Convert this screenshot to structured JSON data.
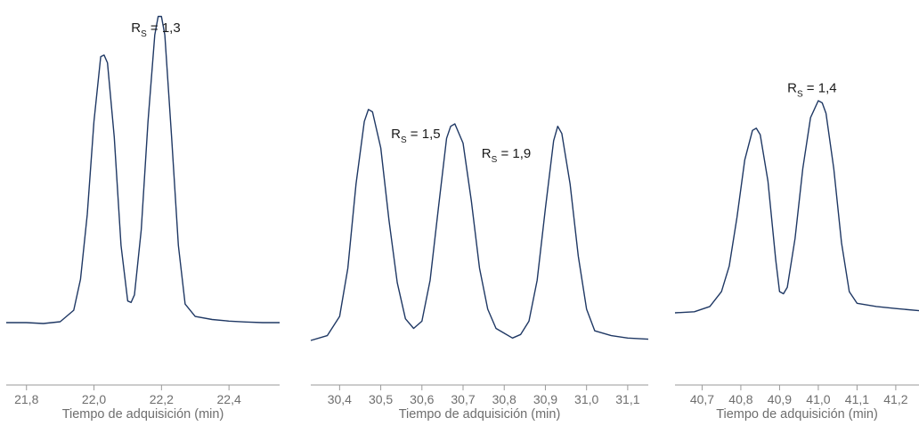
{
  "chart_data": [
    {
      "type": "line",
      "xlabel": "Tiempo de adquisición (min)",
      "xlim": [
        21.74,
        22.55
      ],
      "ylim": [
        0,
        1
      ],
      "xticks": [
        21.8,
        22.0,
        22.2,
        22.4
      ],
      "tick_labels": [
        "21,8",
        "22,0",
        "22,2",
        "22,4"
      ],
      "color": "#1f3864",
      "x": [
        21.74,
        21.8,
        21.85,
        21.9,
        21.94,
        21.96,
        21.98,
        22.0,
        22.02,
        22.03,
        22.04,
        22.06,
        22.08,
        22.1,
        22.11,
        22.12,
        22.14,
        22.16,
        22.18,
        22.19,
        22.2,
        22.21,
        22.23,
        22.25,
        22.27,
        22.3,
        22.35,
        22.4,
        22.45,
        22.5,
        22.55
      ],
      "y": [
        0.0,
        0.0,
        -0.003,
        0.003,
        0.04,
        0.14,
        0.35,
        0.65,
        0.86,
        0.865,
        0.84,
        0.6,
        0.25,
        0.07,
        0.065,
        0.09,
        0.3,
        0.65,
        0.93,
        0.99,
        0.99,
        0.93,
        0.6,
        0.25,
        0.06,
        0.02,
        0.01,
        0.005,
        0.002,
        0.0,
        0.0
      ],
      "annotations": [
        {
          "prefix": "R",
          "sub": "S",
          "value": " = 1,3",
          "x": 22.11,
          "y": 0.94
        }
      ]
    },
    {
      "type": "line",
      "xlabel": "Tiempo de adquisición (min)",
      "xlim": [
        30.33,
        31.15
      ],
      "ylim": [
        0,
        1
      ],
      "xticks": [
        30.4,
        30.5,
        30.6,
        30.7,
        30.8,
        30.9,
        31.0,
        31.1
      ],
      "tick_labels": [
        "30,4",
        "30,5",
        "30,6",
        "30,7",
        "30,8",
        "30,9",
        "31,0",
        "31,1"
      ],
      "color": "#1f3864",
      "x": [
        30.33,
        30.37,
        30.4,
        30.42,
        30.44,
        30.46,
        30.47,
        30.48,
        30.5,
        30.52,
        30.54,
        30.56,
        30.58,
        30.6,
        30.62,
        30.64,
        30.66,
        30.67,
        30.68,
        30.7,
        30.72,
        30.74,
        30.76,
        30.78,
        30.8,
        30.82,
        30.84,
        30.86,
        30.88,
        30.9,
        30.92,
        30.93,
        30.94,
        30.96,
        30.98,
        31.0,
        31.02,
        31.06,
        31.1,
        31.15
      ],
      "y": [
        0.0,
        0.02,
        0.1,
        0.3,
        0.65,
        0.91,
        0.96,
        0.95,
        0.8,
        0.5,
        0.24,
        0.09,
        0.05,
        0.08,
        0.25,
        0.55,
        0.84,
        0.89,
        0.9,
        0.82,
        0.58,
        0.3,
        0.13,
        0.05,
        0.03,
        0.01,
        0.025,
        0.08,
        0.25,
        0.55,
        0.83,
        0.89,
        0.86,
        0.65,
        0.35,
        0.13,
        0.04,
        0.02,
        0.01,
        0.005
      ],
      "annotations": [
        {
          "prefix": "R",
          "sub": "S",
          "value": " = 1,5",
          "x": 30.525,
          "y": 0.84
        },
        {
          "prefix": "R",
          "sub": "S",
          "value": " = 1,9",
          "x": 30.745,
          "y": 0.76
        }
      ]
    },
    {
      "type": "line",
      "xlabel": "Tiempo de adquisición (min)",
      "xlim": [
        40.63,
        41.26
      ],
      "ylim": [
        0,
        1
      ],
      "xticks": [
        40.7,
        40.8,
        40.9,
        41.0,
        41.1,
        41.2
      ],
      "tick_labels": [
        "40,7",
        "40,8",
        "40,9",
        "41,0",
        "41,1",
        "41,2"
      ],
      "color": "#1f3864",
      "x": [
        40.63,
        40.68,
        40.72,
        40.75,
        40.77,
        40.79,
        40.81,
        40.83,
        40.84,
        40.85,
        40.87,
        40.89,
        40.9,
        40.91,
        40.92,
        40.94,
        40.96,
        40.98,
        41.0,
        41.01,
        41.02,
        41.04,
        41.06,
        41.08,
        41.1,
        41.15,
        41.2,
        41.26
      ],
      "y": [
        0.0,
        0.005,
        0.03,
        0.1,
        0.22,
        0.45,
        0.72,
        0.86,
        0.87,
        0.84,
        0.62,
        0.25,
        0.1,
        0.09,
        0.12,
        0.35,
        0.68,
        0.92,
        1.0,
        0.99,
        0.94,
        0.68,
        0.33,
        0.1,
        0.045,
        0.03,
        0.02,
        0.01
      ],
      "annotations": [
        {
          "prefix": "R",
          "sub": "S",
          "value": " = 1,4",
          "x": 40.92,
          "y": 1.04
        }
      ]
    }
  ]
}
